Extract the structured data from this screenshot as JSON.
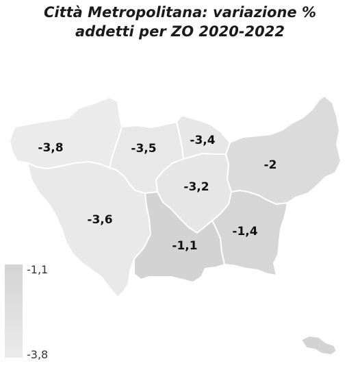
{
  "title": {
    "line1": "Città Metropolitana: variazione %",
    "line2": "addetti per ZO 2020-2022"
  },
  "zones": [
    {
      "label": "-3,8",
      "value": -3.8
    },
    {
      "label": "-3,5",
      "value": -3.5
    },
    {
      "label": "-3,4",
      "value": -3.4
    },
    {
      "label": "-2",
      "value": -2.0
    },
    {
      "label": "-3,2",
      "value": -3.2
    },
    {
      "label": "-3,6",
      "value": -3.6
    },
    {
      "label": "-1,4",
      "value": -1.4
    },
    {
      "label": "-1,1",
      "value": -1.1
    }
  ],
  "legend": {
    "max_label": "-1,1",
    "min_label": "-3,8",
    "color_max": "#d3d3d3",
    "color_min": "#ebebeb"
  }
}
